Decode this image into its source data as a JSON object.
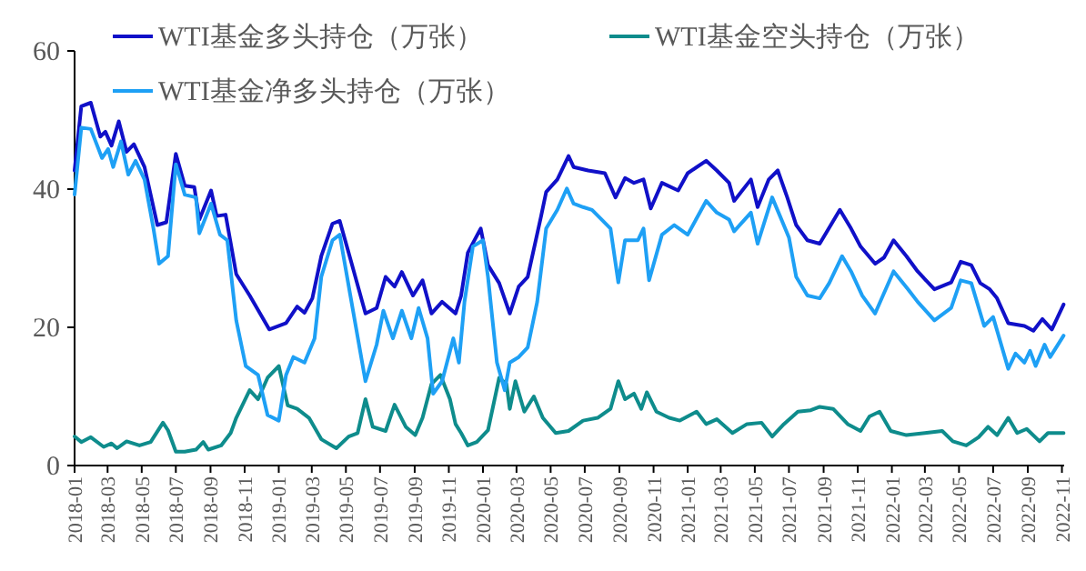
{
  "chart_data": {
    "type": "line",
    "legend": "top",
    "marker": "none",
    "line_style": "solid",
    "xlim": [
      "2018-01-01",
      "2022-11-05"
    ],
    "ylim": [
      0,
      60
    ],
    "yticks": [
      0,
      20,
      40,
      60
    ],
    "xticks": [
      {
        "value": "2018-01-01",
        "label": "2018-01"
      },
      {
        "value": "2018-03-01",
        "label": "2018-03"
      },
      {
        "value": "2018-05-01",
        "label": "2018-05"
      },
      {
        "value": "2018-07-01",
        "label": "2018-07"
      },
      {
        "value": "2018-09-01",
        "label": "2018-09"
      },
      {
        "value": "2018-11-01",
        "label": "2018-11"
      },
      {
        "value": "2019-01-01",
        "label": "2019-01"
      },
      {
        "value": "2019-03-01",
        "label": "2019-03"
      },
      {
        "value": "2019-05-01",
        "label": "2019-05"
      },
      {
        "value": "2019-07-01",
        "label": "2019-07"
      },
      {
        "value": "2019-09-01",
        "label": "2019-09"
      },
      {
        "value": "2019-11-01",
        "label": "2019-11"
      },
      {
        "value": "2020-01-01",
        "label": "2020-01"
      },
      {
        "value": "2020-03-01",
        "label": "2020-03"
      },
      {
        "value": "2020-05-01",
        "label": "2020-05"
      },
      {
        "value": "2020-07-01",
        "label": "2020-07"
      },
      {
        "value": "2020-09-01",
        "label": "2020-09"
      },
      {
        "value": "2020-11-01",
        "label": "2020-11"
      },
      {
        "value": "2021-01-01",
        "label": "2021-01"
      },
      {
        "value": "2021-03-01",
        "label": "2021-03"
      },
      {
        "value": "2021-05-01",
        "label": "2021-05"
      },
      {
        "value": "2021-07-01",
        "label": "2021-07"
      },
      {
        "value": "2021-09-01",
        "label": "2021-09"
      },
      {
        "value": "2021-11-01",
        "label": "2021-11"
      },
      {
        "value": "2022-01-01",
        "label": "2022-01"
      },
      {
        "value": "2022-03-01",
        "label": "2022-03"
      },
      {
        "value": "2022-05-01",
        "label": "2022-05"
      },
      {
        "value": "2022-07-01",
        "label": "2022-07"
      },
      {
        "value": "2022-09-01",
        "label": "2022-09"
      },
      {
        "value": "2022-11-01",
        "label": "2022-11"
      }
    ],
    "series": [
      {
        "name": "WTI基金多头持仓（万张）",
        "color": "#1010c8",
        "x": [
          "2018-01-01",
          "2018-01-13",
          "2018-01-30",
          "2018-02-16",
          "2018-02-25",
          "2018-03-08",
          "2018-03-21",
          "2018-04-04",
          "2018-04-17",
          "2018-05-06",
          "2018-05-29",
          "2018-06-14",
          "2018-07-01",
          "2018-07-17",
          "2018-08-03",
          "2018-08-12",
          "2018-09-02",
          "2018-09-12",
          "2018-09-28",
          "2018-10-17",
          "2018-11-10",
          "2018-12-15",
          "2019-01-14",
          "2019-02-03",
          "2019-02-16",
          "2019-03-02",
          "2019-03-18",
          "2019-04-07",
          "2019-04-20",
          "2019-05-09",
          "2019-06-05",
          "2019-06-25",
          "2019-07-11",
          "2019-07-27",
          "2019-08-09",
          "2019-08-29",
          "2019-09-15",
          "2019-10-01",
          "2019-10-20",
          "2019-11-13",
          "2019-11-23",
          "2019-12-05",
          "2019-12-28",
          "2020-01-10",
          "2020-01-30",
          "2020-02-18",
          "2020-03-05",
          "2020-03-21",
          "2020-04-14",
          "2020-04-23",
          "2020-05-13",
          "2020-06-02",
          "2020-06-11",
          "2020-07-07",
          "2020-08-06",
          "2020-08-25",
          "2020-09-11",
          "2020-09-27",
          "2020-10-14",
          "2020-10-27",
          "2020-11-16",
          "2020-12-15",
          "2021-01-01",
          "2021-02-03",
          "2021-02-22",
          "2021-03-16",
          "2021-03-25",
          "2021-04-24",
          "2021-05-06",
          "2021-05-26",
          "2021-06-11",
          "2021-06-28",
          "2021-07-14",
          "2021-08-03",
          "2021-08-25",
          "2021-09-30",
          "2021-10-20",
          "2021-11-06",
          "2021-12-02",
          "2021-12-18",
          "2022-01-04",
          "2022-01-27",
          "2022-02-16",
          "2022-03-18",
          "2022-04-17",
          "2022-05-04",
          "2022-05-23",
          "2022-06-08",
          "2022-06-25",
          "2022-07-08",
          "2022-07-28",
          "2022-08-26",
          "2022-09-11",
          "2022-09-27",
          "2022-10-14",
          "2022-11-04"
        ],
        "values": [
          42.7,
          52,
          52.5,
          47.6,
          48.3,
          46.3,
          49.8,
          45.4,
          46.5,
          43.2,
          34.8,
          35.2,
          45.1,
          40.5,
          40.3,
          35.6,
          39.8,
          36.1,
          36.3,
          27.7,
          24.6,
          19.7,
          20.6,
          23,
          22.1,
          24.2,
          30.3,
          35,
          35.4,
          29.9,
          22,
          22.8,
          27.3,
          25.9,
          28,
          24.6,
          26.8,
          22,
          23.7,
          22,
          24.6,
          30.8,
          34.3,
          29,
          26.4,
          22,
          25.9,
          27.3,
          36.1,
          39.6,
          41.4,
          44.8,
          43.2,
          42.7,
          42.3,
          38.8,
          41.6,
          40.9,
          41.4,
          37.2,
          40.9,
          39.8,
          42.3,
          44.1,
          42.7,
          40.9,
          38.3,
          41.4,
          37.4,
          41.4,
          42.7,
          38.8,
          34.8,
          32.6,
          32.1,
          37,
          34.3,
          31.7,
          29.2,
          30.1,
          32.6,
          30.3,
          28.1,
          25.5,
          26.5,
          29.5,
          29,
          26.4,
          25.5,
          24.2,
          20.6,
          20.2,
          19.5,
          21.2,
          19.7,
          23.3
        ]
      },
      {
        "name": "WTI基金空头持仓（万张）",
        "color": "#0e8c8c",
        "x": [
          "2018-01-01",
          "2018-01-13",
          "2018-01-30",
          "2018-02-22",
          "2018-03-08",
          "2018-03-18",
          "2018-04-04",
          "2018-04-27",
          "2018-05-17",
          "2018-06-08",
          "2018-06-17",
          "2018-07-01",
          "2018-07-17",
          "2018-08-06",
          "2018-08-19",
          "2018-08-28",
          "2018-09-20",
          "2018-10-07",
          "2018-10-17",
          "2018-11-10",
          "2018-11-25",
          "2018-12-12",
          "2019-01-01",
          "2019-01-17",
          "2019-02-03",
          "2019-02-24",
          "2019-03-18",
          "2019-04-14",
          "2019-05-06",
          "2019-05-22",
          "2019-06-05",
          "2019-06-18",
          "2019-07-11",
          "2019-07-27",
          "2019-08-16",
          "2019-09-02",
          "2019-09-15",
          "2019-10-01",
          "2019-10-17",
          "2019-11-03",
          "2019-11-13",
          "2019-11-23",
          "2019-12-05",
          "2019-12-21",
          "2020-01-10",
          "2020-01-30",
          "2020-02-12",
          "2020-02-18",
          "2020-02-28",
          "2020-03-15",
          "2020-04-01",
          "2020-04-17",
          "2020-05-10",
          "2020-06-02",
          "2020-06-28",
          "2020-07-24",
          "2020-08-16",
          "2020-08-30",
          "2020-09-11",
          "2020-09-27",
          "2020-10-10",
          "2020-10-20",
          "2020-11-06",
          "2020-11-29",
          "2020-12-18",
          "2021-01-17",
          "2021-02-03",
          "2021-02-22",
          "2021-03-22",
          "2021-04-17",
          "2021-05-13",
          "2021-06-01",
          "2021-06-22",
          "2021-07-17",
          "2021-08-09",
          "2021-08-25",
          "2021-09-18",
          "2021-10-14",
          "2021-11-06",
          "2021-11-22",
          "2021-12-10",
          "2021-12-30",
          "2022-01-27",
          "2022-03-01",
          "2022-04-01",
          "2022-04-20",
          "2022-05-14",
          "2022-06-05",
          "2022-06-22",
          "2022-07-08",
          "2022-07-28",
          "2022-08-13",
          "2022-08-30",
          "2022-09-22",
          "2022-10-07",
          "2022-11-04"
        ],
        "values": [
          4.2,
          3.4,
          4.1,
          2.7,
          3.2,
          2.5,
          3.5,
          2.9,
          3.4,
          6.2,
          5.1,
          2,
          2,
          2.3,
          3.4,
          2.3,
          2.9,
          4.7,
          6.9,
          10.9,
          9.6,
          12.7,
          14.4,
          8.7,
          8.2,
          6.9,
          3.8,
          2.5,
          4.2,
          4.7,
          9.6,
          5.6,
          5,
          8.8,
          5.6,
          4.4,
          6.9,
          11.8,
          13.1,
          9.6,
          6,
          4.7,
          2.9,
          3.4,
          5.1,
          12.7,
          11.8,
          8.2,
          12.2,
          7.8,
          10,
          6.9,
          4.7,
          5,
          6.5,
          6.9,
          8.2,
          12.2,
          9.6,
          10.4,
          8.2,
          10.6,
          7.8,
          6.9,
          6.5,
          7.8,
          6,
          6.7,
          4.7,
          6,
          6.2,
          4.2,
          6,
          7.8,
          8,
          8.5,
          8.2,
          6,
          5,
          7.1,
          7.8,
          5,
          4.4,
          4.7,
          5,
          3.5,
          2.9,
          4.1,
          5.6,
          4.4,
          6.9,
          4.7,
          5.3,
          3.5,
          4.7,
          4.7
        ]
      },
      {
        "name": "WTI基金净多头持仓（万张）",
        "color": "#1ea0f5",
        "x": [
          "2018-01-01",
          "2018-01-13",
          "2018-01-30",
          "2018-02-19",
          "2018-03-02",
          "2018-03-11",
          "2018-03-25",
          "2018-04-07",
          "2018-04-20",
          "2018-05-06",
          "2018-05-22",
          "2018-06-01",
          "2018-06-17",
          "2018-07-01",
          "2018-07-17",
          "2018-08-06",
          "2018-08-12",
          "2018-09-02",
          "2018-09-18",
          "2018-10-01",
          "2018-10-17",
          "2018-11-03",
          "2018-11-25",
          "2018-12-12",
          "2019-01-01",
          "2019-01-14",
          "2019-01-27",
          "2019-02-16",
          "2019-03-06",
          "2019-03-18",
          "2019-04-07",
          "2019-04-20",
          "2019-05-09",
          "2019-06-05",
          "2019-06-25",
          "2019-07-07",
          "2019-07-24",
          "2019-08-09",
          "2019-08-26",
          "2019-09-08",
          "2019-09-24",
          "2019-10-04",
          "2019-10-20",
          "2019-11-09",
          "2019-11-19",
          "2019-11-29",
          "2019-12-14",
          "2020-01-01",
          "2020-01-10",
          "2020-01-26",
          "2020-02-09",
          "2020-02-18",
          "2020-03-05",
          "2020-03-21",
          "2020-04-07",
          "2020-04-23",
          "2020-05-13",
          "2020-05-30",
          "2020-06-11",
          "2020-06-28",
          "2020-07-14",
          "2020-07-31",
          "2020-08-16",
          "2020-08-30",
          "2020-09-11",
          "2020-10-04",
          "2020-10-14",
          "2020-10-24",
          "2020-11-16",
          "2020-12-08",
          "2021-01-01",
          "2021-02-03",
          "2021-02-22",
          "2021-03-16",
          "2021-03-25",
          "2021-04-24",
          "2021-05-06",
          "2021-06-01",
          "2021-06-15",
          "2021-07-01",
          "2021-07-14",
          "2021-08-03",
          "2021-08-25",
          "2021-09-11",
          "2021-10-04",
          "2021-10-20",
          "2021-11-09",
          "2021-12-02",
          "2022-01-04",
          "2022-01-30",
          "2022-02-16",
          "2022-03-18",
          "2022-04-17",
          "2022-05-04",
          "2022-05-23",
          "2022-06-15",
          "2022-07-01",
          "2022-07-28",
          "2022-08-10",
          "2022-08-26",
          "2022-09-05",
          "2022-09-15",
          "2022-10-01",
          "2022-10-11",
          "2022-11-04"
        ],
        "values": [
          39.2,
          48.9,
          48.7,
          44.5,
          45.8,
          43.2,
          46.9,
          42.1,
          44.1,
          41.4,
          34.3,
          29.2,
          30.3,
          43.6,
          39.2,
          38.8,
          33.6,
          37.9,
          33.4,
          32.6,
          21,
          14.4,
          13.1,
          7.3,
          6.5,
          13.1,
          15.7,
          14.9,
          18.4,
          27.3,
          32.6,
          33.4,
          24.6,
          12.2,
          17.5,
          22.4,
          18.4,
          22.4,
          18.4,
          22.8,
          18.4,
          10.4,
          12.2,
          18.4,
          14.9,
          23.7,
          31.7,
          32.6,
          27.3,
          14.9,
          10.9,
          14.9,
          15.7,
          17.1,
          23.7,
          34.3,
          37,
          40.1,
          37.9,
          37.4,
          37,
          35.6,
          34.3,
          26.5,
          32.6,
          32.6,
          34.3,
          26.8,
          33.4,
          34.8,
          33.4,
          38.3,
          36.6,
          35.6,
          33.9,
          36.6,
          32.1,
          38.8,
          36.1,
          33,
          27.3,
          24.6,
          24.2,
          26.4,
          30.3,
          28.1,
          24.6,
          22,
          28.1,
          25.5,
          23.7,
          21,
          22.8,
          26.8,
          26.4,
          20.2,
          21.5,
          14,
          16.2,
          14.9,
          16.6,
          14.4,
          17.5,
          15.7,
          18.8
        ]
      }
    ]
  }
}
